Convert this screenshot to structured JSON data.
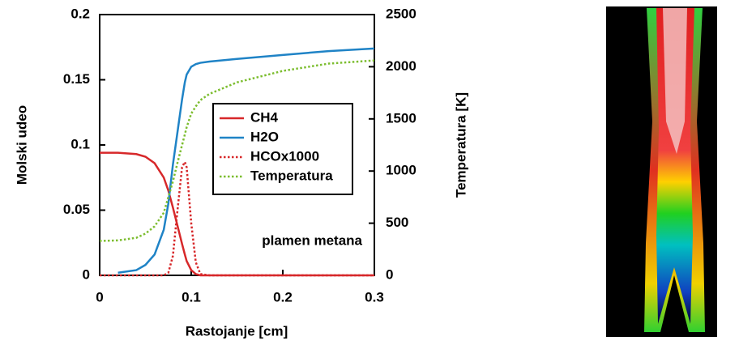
{
  "chart_data": {
    "type": "line",
    "x_label": "Rastojanje [cm]",
    "y_label": "Molski udeo",
    "y2_label": "Temperatura [K]",
    "annotation": "plamen metana",
    "x": [
      0,
      0.02,
      0.04,
      0.05,
      0.06,
      0.07,
      0.075,
      0.08,
      0.085,
      0.09,
      0.093,
      0.095,
      0.1,
      0.105,
      0.11,
      0.12,
      0.15,
      0.2,
      0.25,
      0.3
    ],
    "xlim": [
      0,
      0.3
    ],
    "xticks": [
      0,
      0.1,
      0.2,
      0.3
    ],
    "ylim": [
      0,
      0.2
    ],
    "yticks": [
      0,
      0.05,
      0.1,
      0.15,
      0.2
    ],
    "y2lim": [
      0,
      2500
    ],
    "y2ticks": [
      0,
      500,
      1000,
      1500,
      2000,
      2500
    ],
    "series": [
      {
        "name": "CH4",
        "color": "#d7282a",
        "style": "solid",
        "values": [
          0.094,
          0.094,
          0.093,
          0.091,
          0.086,
          0.075,
          0.065,
          0.052,
          0.038,
          0.024,
          0.016,
          0.011,
          0.004,
          0.001,
          0,
          0,
          0,
          0,
          0,
          0
        ]
      },
      {
        "name": "H2O",
        "color": "#1f83c6",
        "style": "solid",
        "values": [
          null,
          0.002,
          0.004,
          0.008,
          0.016,
          0.035,
          0.055,
          0.085,
          0.11,
          0.135,
          0.148,
          0.154,
          0.16,
          0.162,
          0.163,
          0.164,
          0.166,
          0.169,
          0.172,
          0.174
        ]
      },
      {
        "name": "HCOx1000",
        "color": "#d7282a",
        "style": "dotted",
        "values": [
          0,
          0,
          0,
          0,
          0,
          0,
          0.002,
          0.015,
          0.05,
          0.083,
          0.087,
          0.083,
          0.04,
          0.01,
          0.001,
          0,
          0,
          0,
          0,
          0
        ]
      },
      {
        "name": "Temperatura",
        "color": "#7cbd2f",
        "style": "dotted",
        "axis": "y2",
        "values": [
          330,
          335,
          360,
          400,
          470,
          600,
          750,
          900,
          1080,
          1250,
          1350,
          1420,
          1550,
          1620,
          1680,
          1740,
          1850,
          1960,
          2030,
          2060
        ]
      }
    ]
  }
}
